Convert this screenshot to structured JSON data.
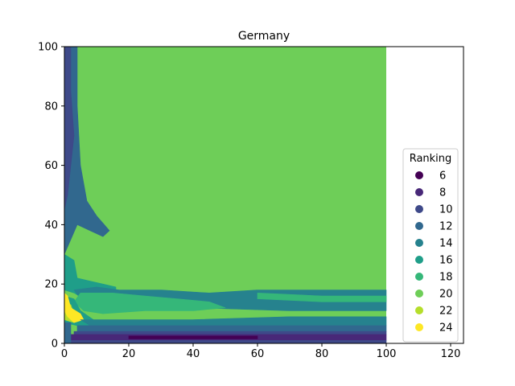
{
  "chart_data": {
    "type": "heatmap",
    "title": "Germany",
    "xlabel": "",
    "ylabel": "",
    "xlim": [
      0,
      124
    ],
    "ylim": [
      0,
      100
    ],
    "x_ticks": [
      0,
      20,
      40,
      60,
      80,
      100,
      120
    ],
    "y_ticks": [
      0,
      20,
      40,
      60,
      80,
      100
    ],
    "data_extent": {
      "x": [
        0,
        100
      ],
      "y": [
        0,
        100
      ]
    },
    "legend": {
      "title": "Ranking",
      "placement": "center-right",
      "entries": [
        {
          "label": "6",
          "color": "#440154"
        },
        {
          "label": "8",
          "color": "#482878"
        },
        {
          "label": "10",
          "color": "#3e4989"
        },
        {
          "label": "12",
          "color": "#31688e"
        },
        {
          "label": "14",
          "color": "#26828e"
        },
        {
          "label": "16",
          "color": "#1f9e89"
        },
        {
          "label": "18",
          "color": "#35b779"
        },
        {
          "label": "20",
          "color": "#6ece58"
        },
        {
          "label": "22",
          "color": "#b5de2b"
        },
        {
          "label": "24",
          "color": "#fde725"
        }
      ]
    },
    "background_level": "20",
    "regions": [
      {
        "level": "12",
        "points": [
          [
            0,
            100
          ],
          [
            4,
            100
          ],
          [
            4,
            80
          ],
          [
            5,
            60
          ],
          [
            7,
            48
          ],
          [
            10,
            43
          ],
          [
            14,
            38
          ],
          [
            12,
            36
          ],
          [
            8,
            38
          ],
          [
            4,
            40
          ],
          [
            2,
            35
          ],
          [
            0,
            30
          ]
        ]
      },
      {
        "level": "10",
        "points": [
          [
            0,
            100
          ],
          [
            2,
            100
          ],
          [
            2,
            85
          ],
          [
            3,
            70
          ],
          [
            2,
            60
          ],
          [
            1,
            50
          ],
          [
            0,
            45
          ]
        ]
      },
      {
        "level": "16",
        "points": [
          [
            0,
            30
          ],
          [
            3,
            28
          ],
          [
            4,
            22
          ],
          [
            8,
            21
          ],
          [
            12,
            20
          ],
          [
            16,
            19
          ],
          [
            16,
            17
          ],
          [
            10,
            16
          ],
          [
            6,
            15
          ],
          [
            3,
            17
          ],
          [
            0,
            18
          ]
        ]
      },
      {
        "level": "14",
        "points": [
          [
            3,
            18
          ],
          [
            10,
            19
          ],
          [
            17,
            18
          ],
          [
            30,
            18
          ],
          [
            45,
            17
          ],
          [
            60,
            18
          ],
          [
            80,
            18
          ],
          [
            100,
            18
          ],
          [
            100,
            11
          ],
          [
            70,
            11
          ],
          [
            40,
            12
          ],
          [
            20,
            12
          ],
          [
            10,
            13
          ],
          [
            5,
            15
          ]
        ]
      },
      {
        "level": "18",
        "points": [
          [
            5,
            17
          ],
          [
            15,
            17
          ],
          [
            25,
            16
          ],
          [
            35,
            15
          ],
          [
            45,
            14
          ],
          [
            50,
            12
          ],
          [
            40,
            11
          ],
          [
            25,
            11
          ],
          [
            12,
            10
          ],
          [
            6,
            11
          ],
          [
            3,
            14
          ]
        ]
      },
      {
        "level": "18",
        "points": [
          [
            60,
            17
          ],
          [
            80,
            16
          ],
          [
            100,
            16
          ],
          [
            100,
            14
          ],
          [
            80,
            14
          ],
          [
            60,
            15
          ]
        ]
      },
      {
        "level": "16",
        "points": [
          [
            0,
            16
          ],
          [
            3,
            15
          ],
          [
            5,
            11
          ],
          [
            9,
            8
          ],
          [
            12,
            7
          ],
          [
            8,
            5
          ],
          [
            4,
            6
          ],
          [
            0,
            7
          ]
        ]
      },
      {
        "level": "22",
        "points": [
          [
            0,
            14
          ],
          [
            2,
            13
          ],
          [
            3,
            10
          ],
          [
            5,
            9
          ],
          [
            3,
            7
          ],
          [
            0,
            8
          ]
        ]
      },
      {
        "level": "24",
        "points": [
          [
            0,
            17
          ],
          [
            1,
            16
          ],
          [
            2,
            12
          ],
          [
            5,
            10
          ],
          [
            6,
            8
          ],
          [
            3,
            7
          ],
          [
            1,
            9
          ],
          [
            0,
            11
          ]
        ]
      },
      {
        "level": "14",
        "points": [
          [
            5,
            8
          ],
          [
            20,
            8
          ],
          [
            40,
            8
          ],
          [
            70,
            9
          ],
          [
            100,
            9
          ],
          [
            100,
            6
          ],
          [
            60,
            6
          ],
          [
            20,
            6
          ],
          [
            8,
            6
          ]
        ]
      },
      {
        "level": "12",
        "points": [
          [
            4,
            6
          ],
          [
            100,
            6
          ],
          [
            100,
            4
          ],
          [
            4,
            4
          ]
        ]
      },
      {
        "level": "10",
        "points": [
          [
            3,
            4
          ],
          [
            100,
            4
          ],
          [
            100,
            3
          ],
          [
            3,
            3
          ]
        ]
      },
      {
        "level": "8",
        "points": [
          [
            2,
            3
          ],
          [
            100,
            3
          ],
          [
            100,
            1
          ],
          [
            2,
            1
          ]
        ]
      },
      {
        "level": "6",
        "points": [
          [
            20,
            2.5
          ],
          [
            60,
            2.5
          ],
          [
            60,
            1.5
          ],
          [
            20,
            1.5
          ]
        ]
      },
      {
        "level": "10",
        "points": [
          [
            0,
            1
          ],
          [
            100,
            1
          ],
          [
            100,
            0
          ],
          [
            0,
            0
          ]
        ]
      },
      {
        "level": "12",
        "points": [
          [
            0,
            7
          ],
          [
            2,
            7
          ],
          [
            2,
            0
          ],
          [
            0,
            0
          ]
        ]
      }
    ]
  }
}
